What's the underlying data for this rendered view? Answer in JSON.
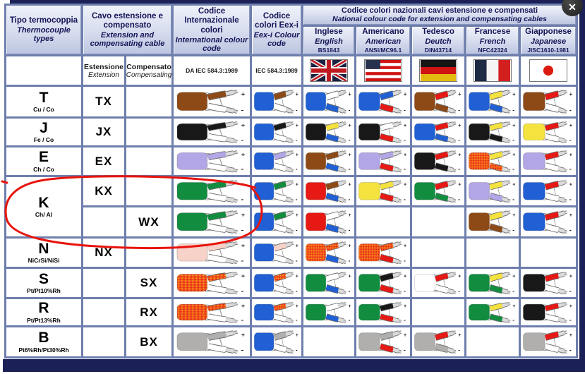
{
  "window": {
    "close_label": "✕"
  },
  "palette": {
    "blue": "#2060d4",
    "brown": "#8e4a16",
    "black": "#181818",
    "violet": "#b3a6e6",
    "green": "#128c3f",
    "pink": "#f6d2c8",
    "orange": "#f2591d",
    "orange_speckle": "#d80f0f",
    "grey": "#b0afad",
    "red": "#e61914",
    "yellow": "#f4e23e",
    "white": "#ffffff",
    "grid_line": "#6e7ead",
    "frame": "#1b2156",
    "header_text": "#141457"
  },
  "header": {
    "type": {
      "it": "Tipo termocoppia",
      "en": "Thermocouple types"
    },
    "cable": {
      "it": "Cavo estensione e compensato",
      "en": "Extension and compensating cable"
    },
    "intl": {
      "it": "Codice Internazionale colori",
      "en": "International colour code",
      "std": "DA IEC 584.3:1989"
    },
    "eexi": {
      "it": "Codice colori Eex-i",
      "en": "Eex-i Colour code",
      "std": "IEC 584.3:1989"
    },
    "national": {
      "it": "Codice colori nazionali cavi estensione e compensati",
      "en": "National colour code for extension and compensating cables",
      "cols": [
        {
          "it": "Inglese",
          "en": "English",
          "std": "BS1843",
          "flag": "uk-flag-icon"
        },
        {
          "it": "Americano",
          "en": "American",
          "std": "ANSI/MC96.1",
          "flag": "us-flag-icon"
        },
        {
          "it": "Tedesco",
          "en": "Deutch",
          "std": "DIN43714",
          "flag": "de-flag-icon"
        },
        {
          "it": "Francese",
          "en": "French",
          "std": "NFC42324",
          "flag": "fr-flag-icon"
        },
        {
          "it": "Giapponese",
          "en": "Japanese",
          "std": "JISC1610-1981",
          "flag": "jp-flag-icon"
        }
      ]
    },
    "sub_extension": {
      "it": "Estensione",
      "en": "Extension"
    },
    "sub_compensating": {
      "it": "Compensato",
      "en": "Compensating"
    }
  },
  "rows": [
    {
      "id": "T",
      "letter": "T",
      "alloy": "Cu / Co",
      "letter_rowspan": 1,
      "ext": "TX",
      "comp": "",
      "cables": {
        "intl": [
          "brown",
          "brown",
          "white"
        ],
        "eexi": [
          "blue",
          "brown",
          "white"
        ],
        "en": [
          "blue",
          "white",
          "blue"
        ],
        "us": [
          "blue",
          "blue",
          "red"
        ],
        "de": [
          "brown",
          "red",
          "brown"
        ],
        "fr": [
          "blue",
          "yellow",
          "blue"
        ],
        "jp": [
          "brown",
          "red",
          "white"
        ]
      }
    },
    {
      "id": "J",
      "letter": "J",
      "alloy": "Fe / Co",
      "letter_rowspan": 1,
      "ext": "JX",
      "comp": "",
      "cables": {
        "intl": [
          "black",
          "black",
          "white"
        ],
        "eexi": [
          "blue",
          "black",
          "white"
        ],
        "en": [
          "black",
          "yellow",
          "blue"
        ],
        "us": [
          "black",
          "white",
          "red"
        ],
        "de": [
          "blue",
          "red",
          "blue"
        ],
        "fr": [
          "black",
          "yellow",
          "black"
        ],
        "jp": [
          "yellow",
          "red",
          "white"
        ]
      }
    },
    {
      "id": "E",
      "letter": "E",
      "alloy": "Ch / Co",
      "letter_rowspan": 1,
      "ext": "EX",
      "comp": "",
      "cables": {
        "intl": [
          "violet",
          "violet",
          "white"
        ],
        "eexi": [
          "blue",
          "violet",
          "white"
        ],
        "en": [
          "brown",
          "brown",
          "blue"
        ],
        "us": [
          "violet",
          "violet",
          "red"
        ],
        "de": [
          "black",
          "red",
          "black"
        ],
        "fr": [
          "orange",
          "yellow",
          "orange"
        ],
        "jp": [
          "violet",
          "red",
          "white"
        ]
      }
    },
    {
      "id": "KX",
      "letter": "K",
      "alloy": "Ch/ Al",
      "letter_rowspan": 2,
      "ext": "KX",
      "comp": "",
      "cables": {
        "intl": [
          "green",
          "green",
          "white"
        ],
        "eexi": [
          "blue",
          "green",
          "white"
        ],
        "en": [
          "red",
          "brown",
          "blue"
        ],
        "us": [
          "yellow",
          "yellow",
          "red"
        ],
        "de": [
          "green",
          "red",
          "green"
        ],
        "fr": [
          "violet",
          "yellow",
          "violet"
        ],
        "jp": [
          "blue",
          "red",
          "white"
        ]
      }
    },
    {
      "id": "WX",
      "letter": null,
      "alloy": "",
      "ext": "",
      "comp": "WX",
      "cables": {
        "intl": [
          "green",
          "green",
          "white"
        ],
        "eexi": [
          "blue",
          "green",
          "white"
        ],
        "en": [
          "red",
          "white",
          "blue"
        ],
        "us": null,
        "de": null,
        "fr": [
          "brown",
          "yellow",
          "brown"
        ],
        "jp": [
          "blue",
          "red",
          "white"
        ]
      }
    },
    {
      "id": "N",
      "letter": "N",
      "alloy": "NiCrSi/NiSi",
      "letter_rowspan": 1,
      "ext": "NX",
      "comp": "",
      "cables": {
        "intl": [
          "pink",
          "pink",
          "white"
        ],
        "eexi": [
          "blue",
          "pink",
          "white"
        ],
        "en": [
          "orange",
          "orange",
          "blue"
        ],
        "us": [
          "orange",
          "orange",
          "red"
        ],
        "de": null,
        "fr": null,
        "jp": null
      }
    },
    {
      "id": "SX",
      "letter": "S",
      "alloy": "Pt/Pt10%Rh",
      "letter_rowspan": 1,
      "ext": "",
      "comp": "SX",
      "cables": {
        "intl": [
          "orange",
          "orange",
          "white"
        ],
        "eexi": [
          "blue",
          "orange",
          "white"
        ],
        "en": [
          "green",
          "white",
          "blue"
        ],
        "us": [
          "green",
          "black",
          "red"
        ],
        "de": [
          "white",
          "red",
          "white"
        ],
        "fr": [
          "green",
          "yellow",
          "green"
        ],
        "jp": [
          "black",
          "red",
          "white"
        ]
      }
    },
    {
      "id": "RX",
      "letter": "R",
      "alloy": "Pt/Pt13%Rh",
      "letter_rowspan": 1,
      "ext": "",
      "comp": "RX",
      "cables": {
        "intl": [
          "orange",
          "orange",
          "white"
        ],
        "eexi": [
          "blue",
          "orange",
          "white"
        ],
        "en": [
          "green",
          "white",
          "blue"
        ],
        "us": [
          "green",
          "black",
          "red"
        ],
        "de": null,
        "fr": [
          "green",
          "yellow",
          "green"
        ],
        "jp": [
          "black",
          "red",
          "white"
        ]
      }
    },
    {
      "id": "BX",
      "letter": "B",
      "alloy": "Pt6%Rh/Pt30%Rh",
      "letter_rowspan": 1,
      "ext": "",
      "comp": "BX",
      "cables": {
        "intl": [
          "grey",
          "grey",
          "white"
        ],
        "eexi": [
          "blue",
          "grey",
          "white"
        ],
        "en": null,
        "us": [
          "grey",
          "grey",
          "red"
        ],
        "de": [
          "grey",
          "red",
          "grey"
        ],
        "fr": null,
        "jp": [
          "grey",
          "red",
          "white"
        ]
      }
    }
  ],
  "annotation": {
    "type": "hand-drawn-circle",
    "color": "#e8140c",
    "around": "K thermocouple row (KX / WX)"
  }
}
